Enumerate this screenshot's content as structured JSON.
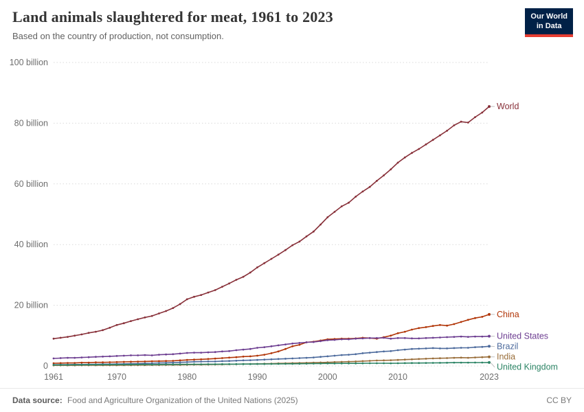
{
  "header": {
    "title": "Land animals slaughtered for meat, 1961 to 2023",
    "subtitle": "Based on the country of production, not consumption.",
    "logo": {
      "line1": "Our World",
      "line2": "in Data"
    },
    "brand_colors": {
      "logo_bg": "#002147",
      "logo_accent": "#E63E32"
    }
  },
  "footer": {
    "source_label": "Data source:",
    "source_text": " Food and Agriculture Organization of the United Nations (2025)",
    "license": "CC BY"
  },
  "chart_data": {
    "type": "line",
    "title": "Land animals slaughtered for meat, 1961 to 2023",
    "subtitle": "Based on the country of production, not consumption.",
    "xlabel": "",
    "ylabel": "",
    "values_unit": "billions of animals per year",
    "ylim": [
      0,
      100
    ],
    "grid": "horizontal-dotted",
    "legend_position": "right-end-labels",
    "y_ticks": [
      {
        "value": 0,
        "label": "0"
      },
      {
        "value": 20,
        "label": "20 billion"
      },
      {
        "value": 40,
        "label": "40 billion"
      },
      {
        "value": 60,
        "label": "60 billion"
      },
      {
        "value": 80,
        "label": "80 billion"
      },
      {
        "value": 100,
        "label": "100 billion"
      }
    ],
    "x_ticks": [
      1961,
      1970,
      1980,
      1990,
      2000,
      2010,
      2023
    ],
    "years": [
      1961,
      1962,
      1963,
      1964,
      1965,
      1966,
      1967,
      1968,
      1969,
      1970,
      1971,
      1972,
      1973,
      1974,
      1975,
      1976,
      1977,
      1978,
      1979,
      1980,
      1981,
      1982,
      1983,
      1984,
      1985,
      1986,
      1987,
      1988,
      1989,
      1990,
      1991,
      1992,
      1993,
      1994,
      1995,
      1996,
      1997,
      1998,
      1999,
      2000,
      2001,
      2002,
      2003,
      2004,
      2005,
      2006,
      2007,
      2008,
      2009,
      2010,
      2011,
      2012,
      2013,
      2014,
      2015,
      2016,
      2017,
      2018,
      2019,
      2020,
      2021,
      2022,
      2023
    ],
    "series": [
      {
        "name": "World",
        "color": "#883039",
        "values": [
          9.0,
          9.3,
          9.6,
          10.0,
          10.4,
          10.9,
          11.3,
          11.8,
          12.6,
          13.5,
          14.1,
          14.8,
          15.4,
          16.0,
          16.5,
          17.3,
          18.1,
          19.1,
          20.4,
          22.0,
          22.8,
          23.4,
          24.2,
          25.0,
          26.1,
          27.2,
          28.4,
          29.4,
          30.8,
          32.5,
          33.9,
          35.3,
          36.7,
          38.2,
          39.8,
          41.0,
          42.7,
          44.3,
          46.6,
          49.0,
          50.8,
          52.6,
          53.8,
          55.8,
          57.5,
          59.0,
          61.0,
          62.8,
          64.8,
          67.0,
          68.7,
          70.2,
          71.5,
          73.0,
          74.5,
          76.0,
          77.5,
          79.3,
          80.5,
          80.2,
          82.0,
          83.5,
          85.5
        ]
      },
      {
        "name": "China",
        "color": "#B13507",
        "values": [
          0.9,
          0.95,
          1.0,
          1.0,
          1.1,
          1.1,
          1.2,
          1.2,
          1.25,
          1.3,
          1.35,
          1.4,
          1.45,
          1.5,
          1.55,
          1.6,
          1.65,
          1.7,
          1.85,
          2.0,
          2.1,
          2.2,
          2.3,
          2.45,
          2.6,
          2.75,
          2.9,
          3.1,
          3.2,
          3.4,
          3.7,
          4.2,
          4.8,
          5.6,
          6.5,
          7.0,
          7.8,
          8.0,
          8.4,
          8.8,
          8.9,
          9.0,
          9.0,
          9.1,
          9.3,
          9.2,
          9.0,
          9.5,
          10.0,
          10.8,
          11.3,
          12.0,
          12.5,
          12.8,
          13.2,
          13.5,
          13.3,
          13.8,
          14.5,
          15.2,
          15.8,
          16.2,
          17.0
        ]
      },
      {
        "name": "United States",
        "color": "#6D3E91",
        "values": [
          2.5,
          2.6,
          2.7,
          2.7,
          2.8,
          2.9,
          3.0,
          3.1,
          3.2,
          3.3,
          3.4,
          3.5,
          3.5,
          3.6,
          3.5,
          3.7,
          3.8,
          3.9,
          4.1,
          4.3,
          4.4,
          4.4,
          4.5,
          4.6,
          4.8,
          4.9,
          5.2,
          5.4,
          5.6,
          6.0,
          6.2,
          6.5,
          6.8,
          7.1,
          7.4,
          7.6,
          7.8,
          7.9,
          8.2,
          8.5,
          8.6,
          8.8,
          8.8,
          9.0,
          9.1,
          9.2,
          9.2,
          9.3,
          9.0,
          9.2,
          9.2,
          9.1,
          9.1,
          9.2,
          9.3,
          9.4,
          9.5,
          9.6,
          9.7,
          9.6,
          9.7,
          9.7,
          9.8
        ]
      },
      {
        "name": "Brazil",
        "color": "#4C6A9C",
        "values": [
          0.4,
          0.45,
          0.45,
          0.5,
          0.5,
          0.55,
          0.55,
          0.6,
          0.6,
          0.65,
          0.7,
          0.75,
          0.8,
          0.85,
          0.9,
          1.0,
          1.05,
          1.1,
          1.2,
          1.3,
          1.4,
          1.45,
          1.5,
          1.5,
          1.6,
          1.65,
          1.75,
          1.85,
          1.9,
          2.0,
          2.1,
          2.2,
          2.3,
          2.4,
          2.5,
          2.6,
          2.7,
          2.8,
          3.0,
          3.2,
          3.4,
          3.6,
          3.7,
          3.9,
          4.2,
          4.4,
          4.6,
          4.8,
          4.9,
          5.2,
          5.4,
          5.6,
          5.7,
          5.8,
          5.9,
          5.8,
          5.8,
          5.9,
          6.0,
          6.0,
          6.2,
          6.3,
          6.5
        ]
      },
      {
        "name": "India",
        "color": "#996D39",
        "values": [
          0.2,
          0.2,
          0.21,
          0.21,
          0.22,
          0.22,
          0.23,
          0.24,
          0.25,
          0.26,
          0.27,
          0.28,
          0.29,
          0.3,
          0.31,
          0.32,
          0.33,
          0.35,
          0.37,
          0.4,
          0.42,
          0.44,
          0.46,
          0.5,
          0.53,
          0.56,
          0.6,
          0.63,
          0.66,
          0.7,
          0.75,
          0.8,
          0.85,
          0.9,
          0.95,
          1.0,
          1.05,
          1.1,
          1.15,
          1.2,
          1.28,
          1.35,
          1.42,
          1.5,
          1.6,
          1.7,
          1.8,
          1.85,
          1.9,
          2.0,
          2.1,
          2.2,
          2.3,
          2.4,
          2.5,
          2.55,
          2.6,
          2.7,
          2.75,
          2.7,
          2.8,
          2.9,
          3.0
        ]
      },
      {
        "name": "United Kingdom",
        "color": "#2C8465",
        "values": [
          0.35,
          0.36,
          0.37,
          0.38,
          0.39,
          0.4,
          0.41,
          0.42,
          0.43,
          0.45,
          0.46,
          0.48,
          0.5,
          0.5,
          0.48,
          0.5,
          0.52,
          0.53,
          0.55,
          0.55,
          0.56,
          0.57,
          0.58,
          0.58,
          0.6,
          0.6,
          0.62,
          0.63,
          0.63,
          0.65,
          0.66,
          0.68,
          0.7,
          0.72,
          0.73,
          0.75,
          0.78,
          0.8,
          0.82,
          0.85,
          0.83,
          0.85,
          0.86,
          0.87,
          0.88,
          0.9,
          0.9,
          0.9,
          0.88,
          0.9,
          0.95,
          0.97,
          0.98,
          1.0,
          1.02,
          1.05,
          1.07,
          1.1,
          1.1,
          1.1,
          1.12,
          1.13,
          1.15
        ]
      }
    ]
  }
}
